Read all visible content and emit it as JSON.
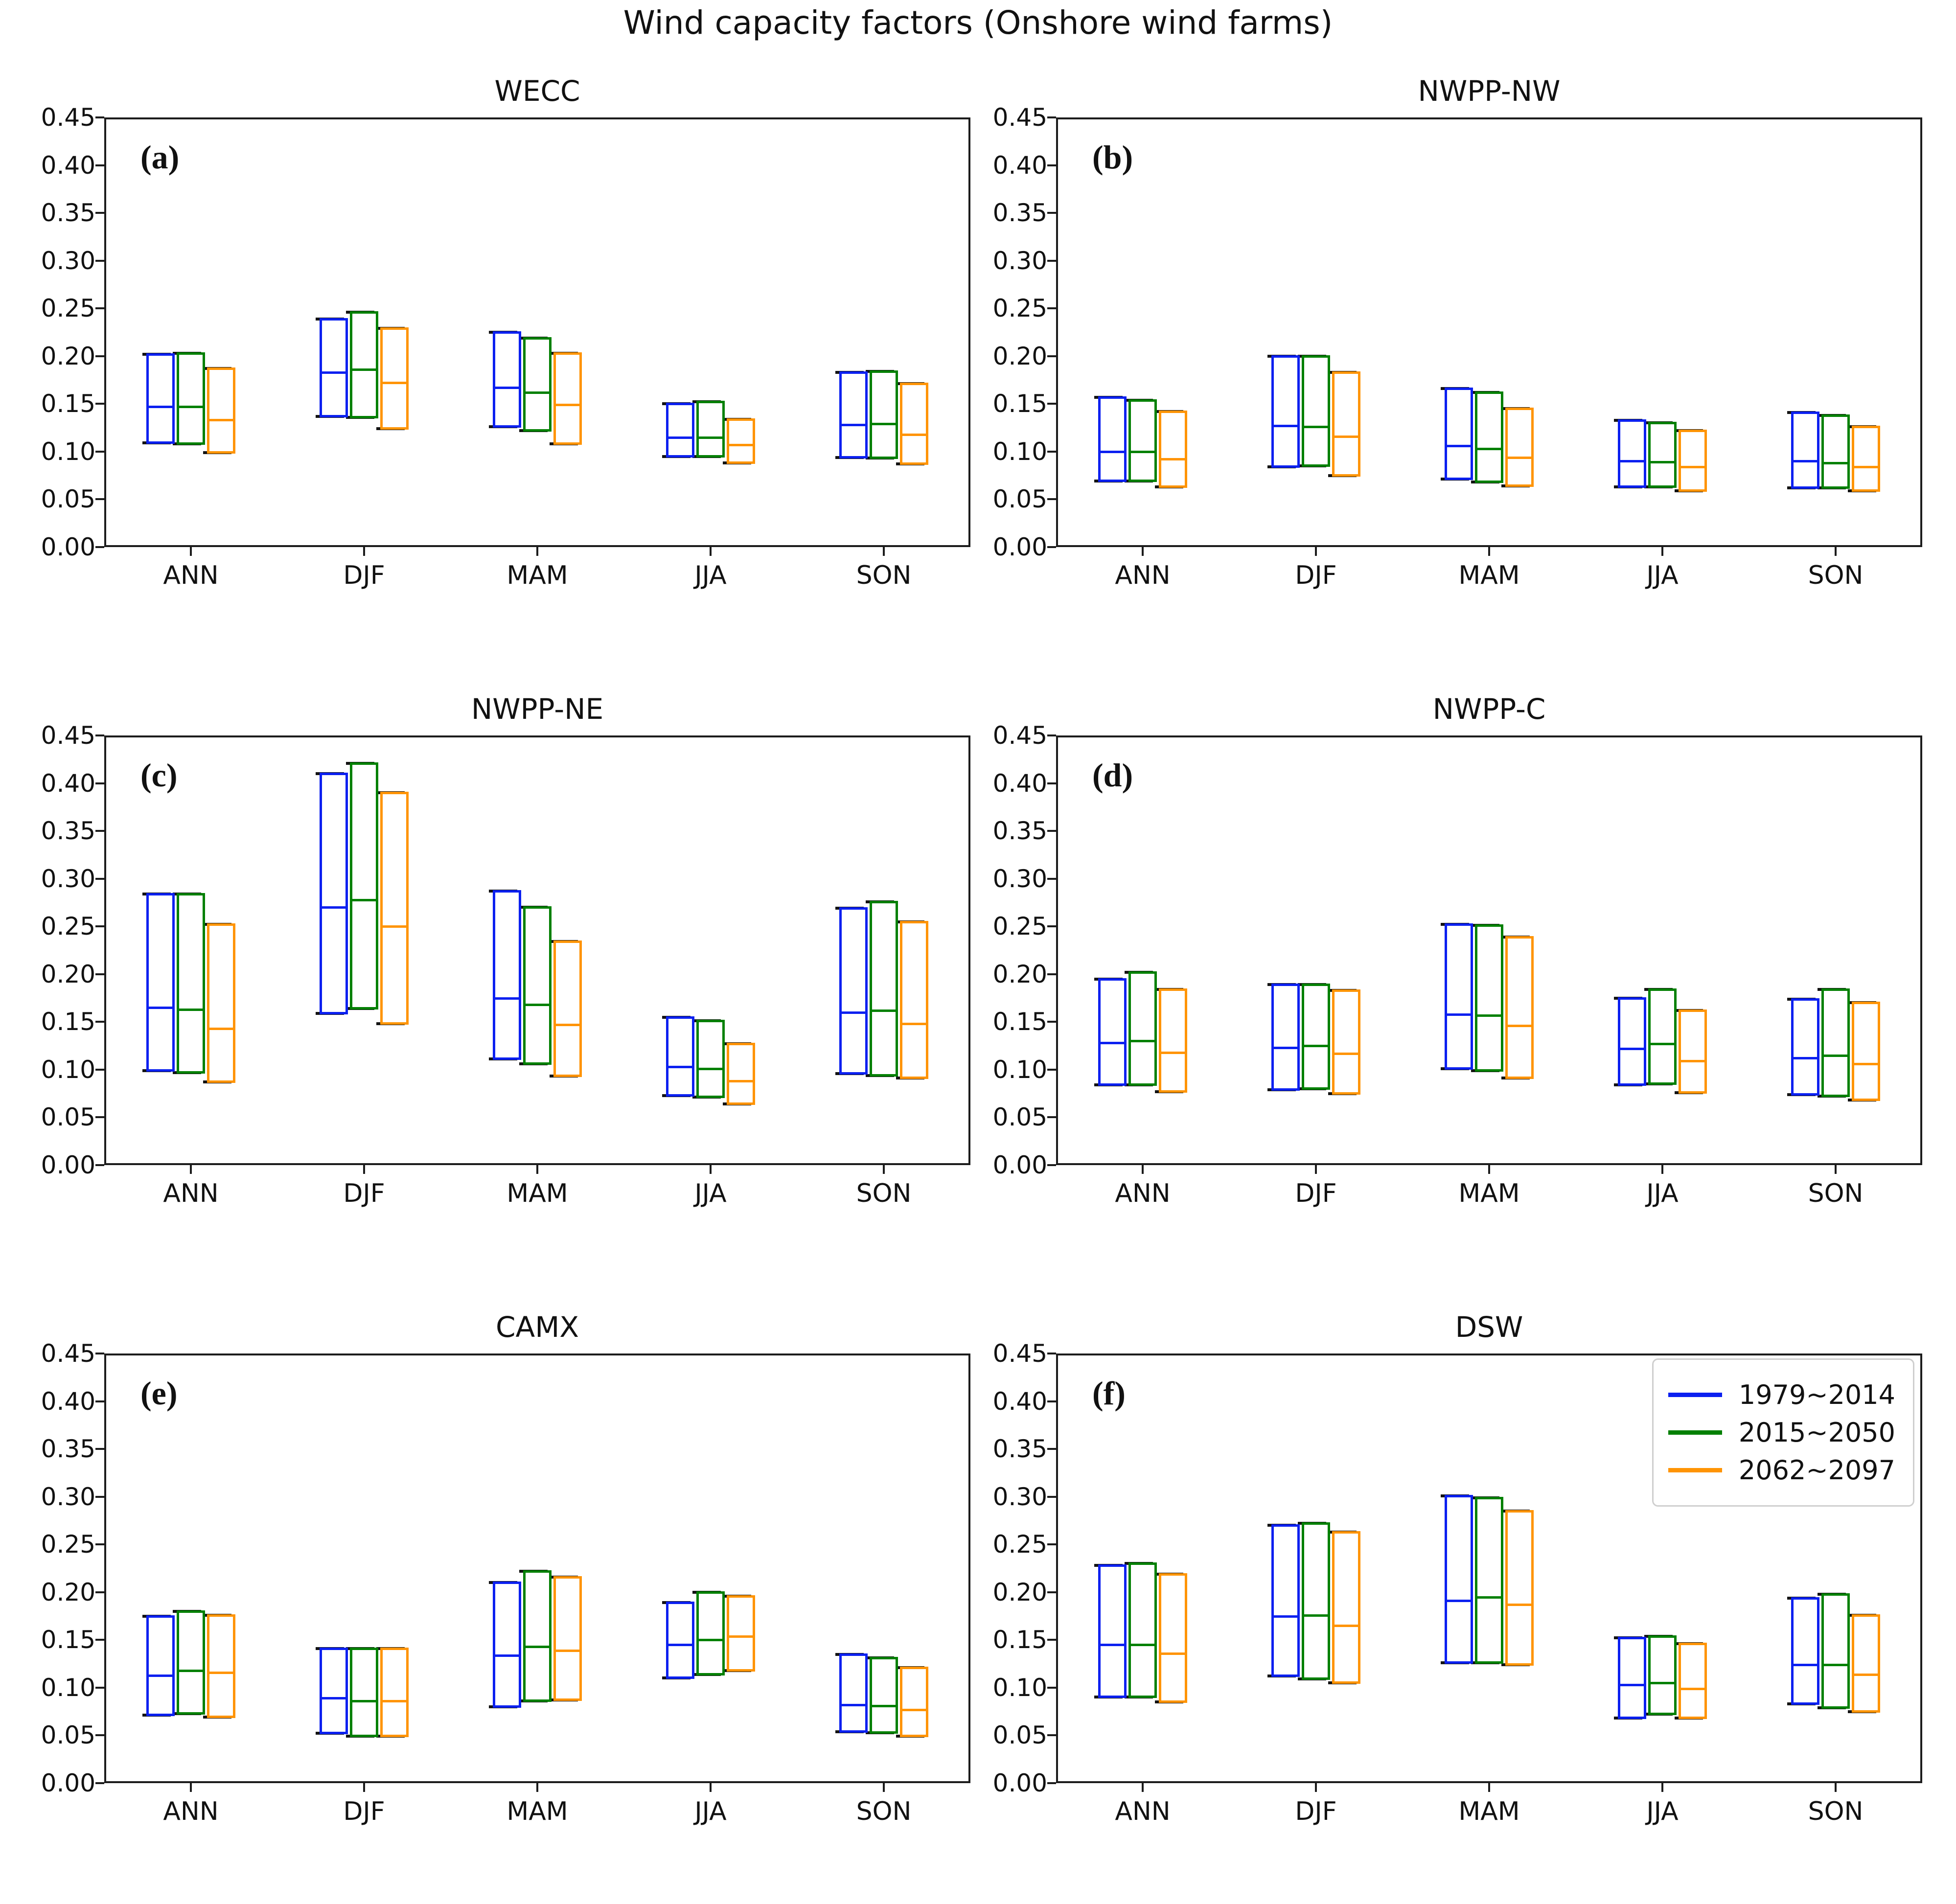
{
  "chart_data": {
    "type": "box",
    "figure_title": "Wind capacity factors (Onshore wind farms)",
    "categories": [
      "ANN",
      "DJF",
      "MAM",
      "JJA",
      "SON"
    ],
    "ylabel": "",
    "ylim": [
      0.0,
      0.45
    ],
    "ytick_step": 0.05,
    "grid": false,
    "box_stat_order": [
      "min",
      "median",
      "max"
    ],
    "periods": [
      {
        "name": "1979~2014",
        "color": "#0b20f0"
      },
      {
        "name": "2015~2050",
        "color": "#018001"
      },
      {
        "name": "2062~2097",
        "color": "#ff9404"
      }
    ],
    "legend": {
      "location": "top-right of panel (f)",
      "items": [
        "1979~2014",
        "2015~2050",
        "2062~2097"
      ]
    },
    "panels": [
      {
        "letter": "(a)",
        "title": "WECC",
        "has_legend": false,
        "boxes": [
          [
            [
              0.108,
              0.147,
              0.203
            ],
            [
              0.107,
              0.147,
              0.204
            ],
            [
              0.098,
              0.133,
              0.188
            ]
          ],
          [
            [
              0.136,
              0.183,
              0.24
            ],
            [
              0.135,
              0.186,
              0.247
            ],
            [
              0.123,
              0.172,
              0.23
            ]
          ],
          [
            [
              0.125,
              0.167,
              0.226
            ],
            [
              0.121,
              0.162,
              0.22
            ],
            [
              0.107,
              0.149,
              0.204
            ]
          ],
          [
            [
              0.094,
              0.115,
              0.151
            ],
            [
              0.094,
              0.115,
              0.153
            ],
            [
              0.087,
              0.107,
              0.135
            ]
          ],
          [
            [
              0.093,
              0.128,
              0.184
            ],
            [
              0.092,
              0.129,
              0.185
            ],
            [
              0.086,
              0.118,
              0.172
            ]
          ]
        ]
      },
      {
        "letter": "(b)",
        "title": "NWPP-NW",
        "has_legend": false,
        "boxes": [
          [
            [
              0.068,
              0.1,
              0.158
            ],
            [
              0.068,
              0.1,
              0.155
            ],
            [
              0.062,
              0.092,
              0.143
            ]
          ],
          [
            [
              0.083,
              0.127,
              0.201
            ],
            [
              0.084,
              0.126,
              0.201
            ],
            [
              0.074,
              0.116,
              0.184
            ]
          ],
          [
            [
              0.07,
              0.106,
              0.167
            ],
            [
              0.067,
              0.103,
              0.163
            ],
            [
              0.063,
              0.094,
              0.146
            ]
          ],
          [
            [
              0.062,
              0.09,
              0.134
            ],
            [
              0.062,
              0.089,
              0.131
            ],
            [
              0.058,
              0.084,
              0.123
            ]
          ],
          [
            [
              0.061,
              0.09,
              0.142
            ],
            [
              0.061,
              0.088,
              0.139
            ],
            [
              0.058,
              0.084,
              0.127
            ]
          ]
        ]
      },
      {
        "letter": "(c)",
        "title": "NWPP-NE",
        "has_legend": false,
        "boxes": [
          [
            [
              0.098,
              0.165,
              0.285
            ],
            [
              0.096,
              0.163,
              0.285
            ],
            [
              0.086,
              0.143,
              0.253
            ]
          ],
          [
            [
              0.158,
              0.27,
              0.411
            ],
            [
              0.163,
              0.278,
              0.422
            ],
            [
              0.147,
              0.25,
              0.391
            ]
          ],
          [
            [
              0.11,
              0.175,
              0.288
            ],
            [
              0.105,
              0.168,
              0.271
            ],
            [
              0.092,
              0.147,
              0.235
            ]
          ],
          [
            [
              0.072,
              0.103,
              0.156
            ],
            [
              0.07,
              0.101,
              0.152
            ],
            [
              0.063,
              0.088,
              0.128
            ]
          ],
          [
            [
              0.095,
              0.16,
              0.27
            ],
            [
              0.093,
              0.162,
              0.277
            ],
            [
              0.09,
              0.148,
              0.256
            ]
          ]
        ]
      },
      {
        "letter": "(d)",
        "title": "NWPP-C",
        "has_legend": false,
        "boxes": [
          [
            [
              0.083,
              0.128,
              0.196
            ],
            [
              0.083,
              0.13,
              0.203
            ],
            [
              0.076,
              0.118,
              0.185
            ]
          ],
          [
            [
              0.078,
              0.123,
              0.19
            ],
            [
              0.079,
              0.125,
              0.19
            ],
            [
              0.074,
              0.117,
              0.184
            ]
          ],
          [
            [
              0.1,
              0.158,
              0.253
            ],
            [
              0.098,
              0.157,
              0.252
            ],
            [
              0.09,
              0.146,
              0.24
            ]
          ],
          [
            [
              0.083,
              0.122,
              0.176
            ],
            [
              0.084,
              0.127,
              0.185
            ],
            [
              0.075,
              0.109,
              0.163
            ]
          ],
          [
            [
              0.073,
              0.112,
              0.175
            ],
            [
              0.071,
              0.115,
              0.185
            ],
            [
              0.067,
              0.106,
              0.171
            ]
          ]
        ]
      },
      {
        "letter": "(e)",
        "title": "CAMX",
        "has_legend": false,
        "boxes": [
          [
            [
              0.07,
              0.113,
              0.176
            ],
            [
              0.072,
              0.118,
              0.181
            ],
            [
              0.068,
              0.116,
              0.177
            ]
          ],
          [
            [
              0.051,
              0.089,
              0.142
            ],
            [
              0.048,
              0.086,
              0.142
            ],
            [
              0.048,
              0.086,
              0.142
            ]
          ],
          [
            [
              0.079,
              0.134,
              0.211
            ],
            [
              0.085,
              0.143,
              0.223
            ],
            [
              0.086,
              0.139,
              0.217
            ]
          ],
          [
            [
              0.109,
              0.145,
              0.19
            ],
            [
              0.113,
              0.15,
              0.201
            ],
            [
              0.117,
              0.154,
              0.197
            ]
          ],
          [
            [
              0.053,
              0.082,
              0.136
            ],
            [
              0.052,
              0.081,
              0.132
            ],
            [
              0.048,
              0.077,
              0.122
            ]
          ]
        ]
      },
      {
        "letter": "(f)",
        "title": "DSW",
        "has_legend": true,
        "boxes": [
          [
            [
              0.089,
              0.145,
              0.229
            ],
            [
              0.089,
              0.145,
              0.231
            ],
            [
              0.084,
              0.136,
              0.22
            ]
          ],
          [
            [
              0.111,
              0.175,
              0.271
            ],
            [
              0.108,
              0.176,
              0.273
            ],
            [
              0.104,
              0.165,
              0.264
            ]
          ],
          [
            [
              0.125,
              0.191,
              0.302
            ],
            [
              0.125,
              0.195,
              0.3
            ],
            [
              0.123,
              0.187,
              0.286
            ]
          ],
          [
            [
              0.067,
              0.103,
              0.153
            ],
            [
              0.071,
              0.105,
              0.155
            ],
            [
              0.067,
              0.099,
              0.147
            ]
          ],
          [
            [
              0.082,
              0.124,
              0.195
            ],
            [
              0.078,
              0.124,
              0.199
            ],
            [
              0.074,
              0.114,
              0.177
            ]
          ]
        ]
      }
    ]
  }
}
